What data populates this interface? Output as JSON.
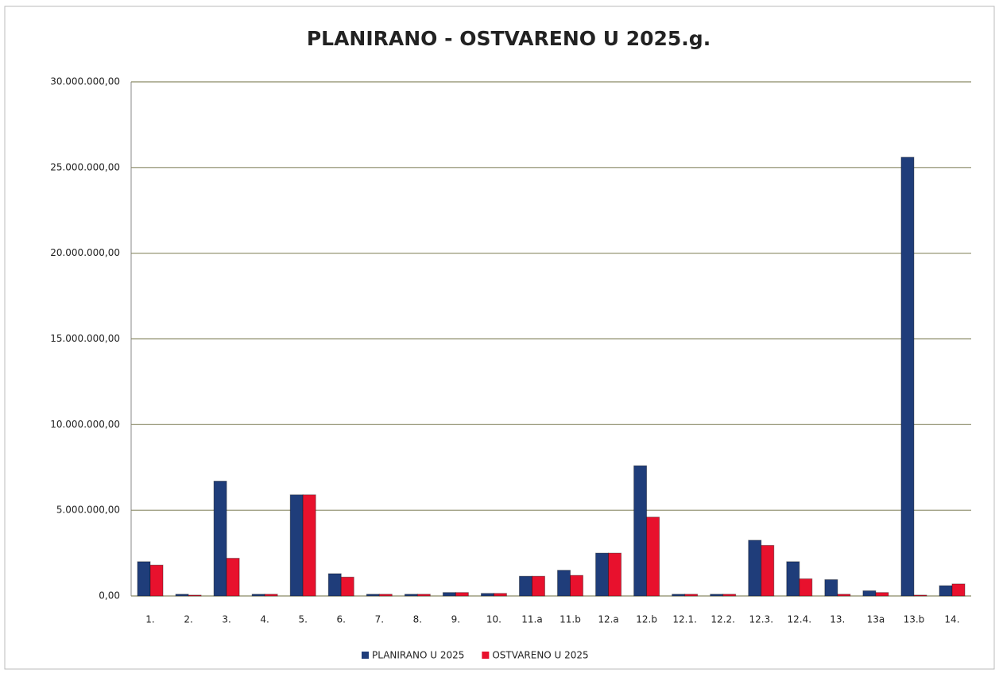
{
  "chart_data": {
    "type": "bar",
    "title": "PLANIRANO - OSTVARENO U 2025.g.",
    "categories": [
      "1.",
      "2.",
      "3.",
      "4.",
      "5.",
      "6.",
      "7.",
      "8.",
      "9.",
      "10.",
      "11.a",
      "11.b",
      "12.a",
      "12.b",
      "12.1.",
      "12.2.",
      "12.3.",
      "12.4.",
      "13.",
      "13a",
      "13.b",
      "14."
    ],
    "series": [
      {
        "name": "PLANIRANO U 2025",
        "color": "#1f3d7a",
        "values": [
          2000000,
          100000,
          6700000,
          100000,
          5900000,
          1300000,
          100000,
          100000,
          200000,
          150000,
          1150000,
          1500000,
          2500000,
          7600000,
          100000,
          100000,
          3250000,
          2000000,
          950000,
          300000,
          25600000,
          600000
        ]
      },
      {
        "name": "OSTVARENO U 2025",
        "color": "#e8112d",
        "values": [
          1800000,
          50000,
          2200000,
          100000,
          5900000,
          1100000,
          100000,
          100000,
          200000,
          150000,
          1150000,
          1200000,
          2500000,
          4600000,
          100000,
          100000,
          2950000,
          1000000,
          100000,
          200000,
          50000,
          700000
        ]
      }
    ],
    "ylim": [
      0,
      30000000
    ],
    "yticks": [
      {
        "value": 0,
        "label": "0,00"
      },
      {
        "value": 5000000,
        "label": "5.000.000,00"
      },
      {
        "value": 10000000,
        "label": "10.000.000,00"
      },
      {
        "value": 15000000,
        "label": "15.000.000,00"
      },
      {
        "value": 20000000,
        "label": "20.000.000,00"
      },
      {
        "value": 25000000,
        "label": "25.000.000,00"
      },
      {
        "value": 30000000,
        "label": "30.000.000,00"
      }
    ],
    "grid": true,
    "legend": "bottom"
  }
}
